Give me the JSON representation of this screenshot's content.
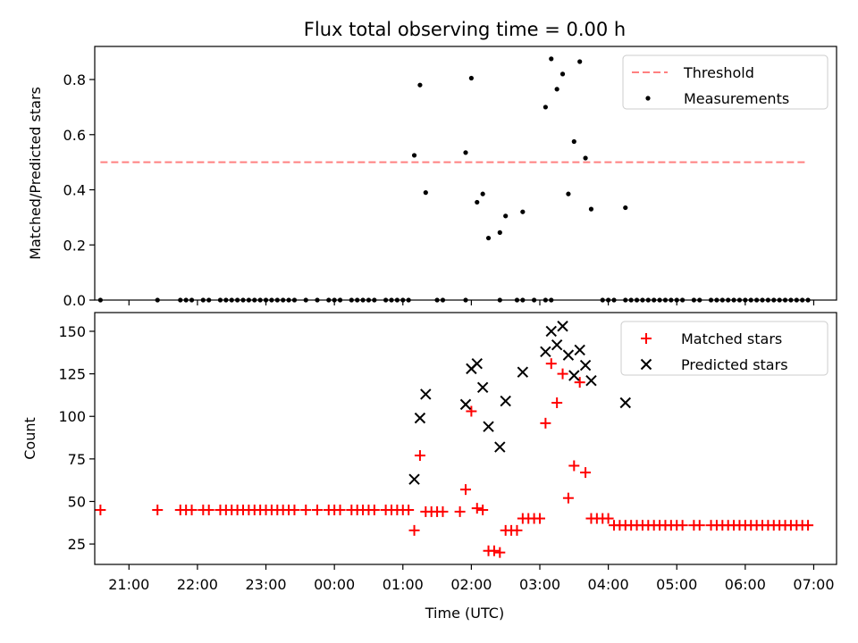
{
  "figure": {
    "title": "Flux total observing time = 0.00 h",
    "xlabel": "Time (UTC)"
  },
  "chart_data": [
    {
      "type": "scatter",
      "ylabel": "Matched/Predicted stars",
      "xlim": [
        "20:30",
        "07:20"
      ],
      "ylim": [
        0,
        0.92
      ],
      "yticks": [
        0.0,
        0.2,
        0.4,
        0.6,
        0.8
      ],
      "ytick_labels": [
        "0.0",
        "0.2",
        "0.4",
        "0.6",
        "0.8"
      ],
      "legend": {
        "placement": "top-right",
        "entries": [
          "Threshold",
          "Measurements"
        ]
      },
      "threshold": {
        "name": "Threshold",
        "value": 0.5,
        "x_range": [
          "20:35",
          "06:55"
        ],
        "color": "#ff8080"
      },
      "measurements": {
        "name": "Measurements",
        "color": "#000000",
        "points": [
          [
            "20:35",
            0
          ],
          [
            "21:25",
            0
          ],
          [
            "21:45",
            0
          ],
          [
            "21:50",
            0
          ],
          [
            "21:55",
            0
          ],
          [
            "22:05",
            0
          ],
          [
            "22:10",
            0
          ],
          [
            "22:20",
            0
          ],
          [
            "22:25",
            0
          ],
          [
            "22:30",
            0
          ],
          [
            "22:35",
            0
          ],
          [
            "22:40",
            0
          ],
          [
            "22:45",
            0
          ],
          [
            "22:50",
            0
          ],
          [
            "22:55",
            0
          ],
          [
            "23:00",
            0
          ],
          [
            "23:05",
            0
          ],
          [
            "23:10",
            0
          ],
          [
            "23:15",
            0
          ],
          [
            "23:20",
            0
          ],
          [
            "23:25",
            0
          ],
          [
            "23:35",
            0
          ],
          [
            "23:45",
            0
          ],
          [
            "23:55",
            0
          ],
          [
            "00:00",
            0
          ],
          [
            "00:05",
            0
          ],
          [
            "00:15",
            0
          ],
          [
            "00:20",
            0
          ],
          [
            "00:25",
            0
          ],
          [
            "00:30",
            0
          ],
          [
            "00:35",
            0
          ],
          [
            "00:45",
            0
          ],
          [
            "00:50",
            0
          ],
          [
            "00:55",
            0
          ],
          [
            "01:00",
            0
          ],
          [
            "01:05",
            0
          ],
          [
            "01:30",
            0
          ],
          [
            "01:35",
            0
          ],
          [
            "01:55",
            0
          ],
          [
            "02:25",
            0
          ],
          [
            "02:40",
            0
          ],
          [
            "02:45",
            0
          ],
          [
            "02:55",
            0
          ],
          [
            "03:05",
            0
          ],
          [
            "03:10",
            0
          ],
          [
            "03:55",
            0
          ],
          [
            "04:00",
            0
          ],
          [
            "04:05",
            0
          ],
          [
            "04:15",
            0
          ],
          [
            "04:20",
            0
          ],
          [
            "04:25",
            0
          ],
          [
            "04:30",
            0
          ],
          [
            "04:35",
            0
          ],
          [
            "04:40",
            0
          ],
          [
            "04:45",
            0
          ],
          [
            "04:50",
            0
          ],
          [
            "04:55",
            0
          ],
          [
            "05:00",
            0
          ],
          [
            "05:05",
            0
          ],
          [
            "05:15",
            0
          ],
          [
            "05:20",
            0
          ],
          [
            "05:30",
            0
          ],
          [
            "05:35",
            0
          ],
          [
            "05:40",
            0
          ],
          [
            "05:45",
            0
          ],
          [
            "05:50",
            0
          ],
          [
            "05:55",
            0
          ],
          [
            "06:00",
            0
          ],
          [
            "06:05",
            0
          ],
          [
            "06:10",
            0
          ],
          [
            "06:15",
            0
          ],
          [
            "06:20",
            0
          ],
          [
            "06:25",
            0
          ],
          [
            "06:30",
            0
          ],
          [
            "06:35",
            0
          ],
          [
            "06:40",
            0
          ],
          [
            "06:45",
            0
          ],
          [
            "06:50",
            0
          ],
          [
            "06:55",
            0
          ],
          [
            "01:10",
            0.525
          ],
          [
            "01:15",
            0.78
          ],
          [
            "01:20",
            0.39
          ],
          [
            "01:55",
            0.535
          ],
          [
            "02:00",
            0.805
          ],
          [
            "02:05",
            0.355
          ],
          [
            "02:10",
            0.385
          ],
          [
            "02:15",
            0.225
          ],
          [
            "02:25",
            0.245
          ],
          [
            "02:30",
            0.305
          ],
          [
            "02:45",
            0.32
          ],
          [
            "03:05",
            0.7
          ],
          [
            "03:10",
            0.875
          ],
          [
            "03:15",
            0.765
          ],
          [
            "03:20",
            0.82
          ],
          [
            "03:25",
            0.385
          ],
          [
            "03:30",
            0.575
          ],
          [
            "03:35",
            0.865
          ],
          [
            "03:40",
            0.515
          ],
          [
            "03:45",
            0.33
          ],
          [
            "04:15",
            0.335
          ]
        ]
      }
    },
    {
      "type": "scatter",
      "ylabel": "Count",
      "xlim": [
        "20:30",
        "07:20"
      ],
      "ylim": [
        13,
        161
      ],
      "yticks": [
        25,
        50,
        75,
        100,
        125,
        150
      ],
      "ytick_labels": [
        "25",
        "50",
        "75",
        "100",
        "125",
        "150"
      ],
      "xtick_labels": [
        "21:00",
        "22:00",
        "23:00",
        "00:00",
        "01:00",
        "02:00",
        "03:00",
        "04:00",
        "05:00",
        "06:00",
        "07:00"
      ],
      "legend": {
        "placement": "top-right",
        "entries": [
          "Matched stars",
          "Predicted stars"
        ]
      },
      "series": [
        {
          "name": "Matched stars",
          "marker": "plus",
          "color": "#ff0000",
          "points": [
            [
              "20:35",
              45
            ],
            [
              "21:25",
              45
            ],
            [
              "21:45",
              45
            ],
            [
              "21:50",
              45
            ],
            [
              "21:55",
              45
            ],
            [
              "22:05",
              45
            ],
            [
              "22:10",
              45
            ],
            [
              "22:20",
              45
            ],
            [
              "22:25",
              45
            ],
            [
              "22:30",
              45
            ],
            [
              "22:35",
              45
            ],
            [
              "22:40",
              45
            ],
            [
              "22:45",
              45
            ],
            [
              "22:50",
              45
            ],
            [
              "22:55",
              45
            ],
            [
              "23:00",
              45
            ],
            [
              "23:05",
              45
            ],
            [
              "23:10",
              45
            ],
            [
              "23:15",
              45
            ],
            [
              "23:20",
              45
            ],
            [
              "23:25",
              45
            ],
            [
              "23:35",
              45
            ],
            [
              "23:45",
              45
            ],
            [
              "23:55",
              45
            ],
            [
              "00:00",
              45
            ],
            [
              "00:05",
              45
            ],
            [
              "00:15",
              45
            ],
            [
              "00:20",
              45
            ],
            [
              "00:25",
              45
            ],
            [
              "00:30",
              45
            ],
            [
              "00:35",
              45
            ],
            [
              "00:45",
              45
            ],
            [
              "00:50",
              45
            ],
            [
              "00:55",
              45
            ],
            [
              "01:00",
              45
            ],
            [
              "01:05",
              45
            ],
            [
              "01:10",
              33
            ],
            [
              "01:15",
              77
            ],
            [
              "01:20",
              44
            ],
            [
              "01:25",
              44
            ],
            [
              "01:30",
              44
            ],
            [
              "01:35",
              44
            ],
            [
              "01:50",
              44
            ],
            [
              "01:55",
              57
            ],
            [
              "02:00",
              103
            ],
            [
              "02:05",
              46
            ],
            [
              "02:10",
              45
            ],
            [
              "02:15",
              21
            ],
            [
              "02:20",
              21
            ],
            [
              "02:25",
              20
            ],
            [
              "02:30",
              33
            ],
            [
              "02:35",
              33
            ],
            [
              "02:40",
              33
            ],
            [
              "02:45",
              40
            ],
            [
              "02:50",
              40
            ],
            [
              "02:55",
              40
            ],
            [
              "03:00",
              40
            ],
            [
              "03:05",
              96
            ],
            [
              "03:10",
              131
            ],
            [
              "03:15",
              108
            ],
            [
              "03:20",
              125
            ],
            [
              "03:25",
              52
            ],
            [
              "03:30",
              71
            ],
            [
              "03:35",
              120
            ],
            [
              "03:40",
              67
            ],
            [
              "03:45",
              40
            ],
            [
              "03:50",
              40
            ],
            [
              "03:55",
              40
            ],
            [
              "04:00",
              40
            ],
            [
              "04:05",
              36
            ],
            [
              "04:10",
              36
            ],
            [
              "04:15",
              36
            ],
            [
              "04:20",
              36
            ],
            [
              "04:25",
              36
            ],
            [
              "04:30",
              36
            ],
            [
              "04:35",
              36
            ],
            [
              "04:40",
              36
            ],
            [
              "04:45",
              36
            ],
            [
              "04:50",
              36
            ],
            [
              "04:55",
              36
            ],
            [
              "05:00",
              36
            ],
            [
              "05:05",
              36
            ],
            [
              "05:15",
              36
            ],
            [
              "05:20",
              36
            ],
            [
              "05:30",
              36
            ],
            [
              "05:35",
              36
            ],
            [
              "05:40",
              36
            ],
            [
              "05:45",
              36
            ],
            [
              "05:50",
              36
            ],
            [
              "05:55",
              36
            ],
            [
              "06:00",
              36
            ],
            [
              "06:05",
              36
            ],
            [
              "06:10",
              36
            ],
            [
              "06:15",
              36
            ],
            [
              "06:20",
              36
            ],
            [
              "06:25",
              36
            ],
            [
              "06:30",
              36
            ],
            [
              "06:35",
              36
            ],
            [
              "06:40",
              36
            ],
            [
              "06:45",
              36
            ],
            [
              "06:50",
              36
            ],
            [
              "06:55",
              36
            ]
          ]
        },
        {
          "name": "Predicted stars",
          "marker": "x",
          "color": "#000000",
          "points": [
            [
              "01:10",
              63
            ],
            [
              "01:15",
              99
            ],
            [
              "01:20",
              113
            ],
            [
              "01:55",
              107
            ],
            [
              "02:00",
              128
            ],
            [
              "02:05",
              131
            ],
            [
              "02:10",
              117
            ],
            [
              "02:15",
              94
            ],
            [
              "02:25",
              82
            ],
            [
              "02:30",
              109
            ],
            [
              "02:45",
              126
            ],
            [
              "03:05",
              138
            ],
            [
              "03:10",
              150
            ],
            [
              "03:15",
              142
            ],
            [
              "03:20",
              153
            ],
            [
              "03:25",
              136
            ],
            [
              "03:30",
              124
            ],
            [
              "03:35",
              139
            ],
            [
              "03:40",
              130
            ],
            [
              "03:45",
              121
            ],
            [
              "04:15",
              108
            ]
          ]
        }
      ]
    }
  ]
}
